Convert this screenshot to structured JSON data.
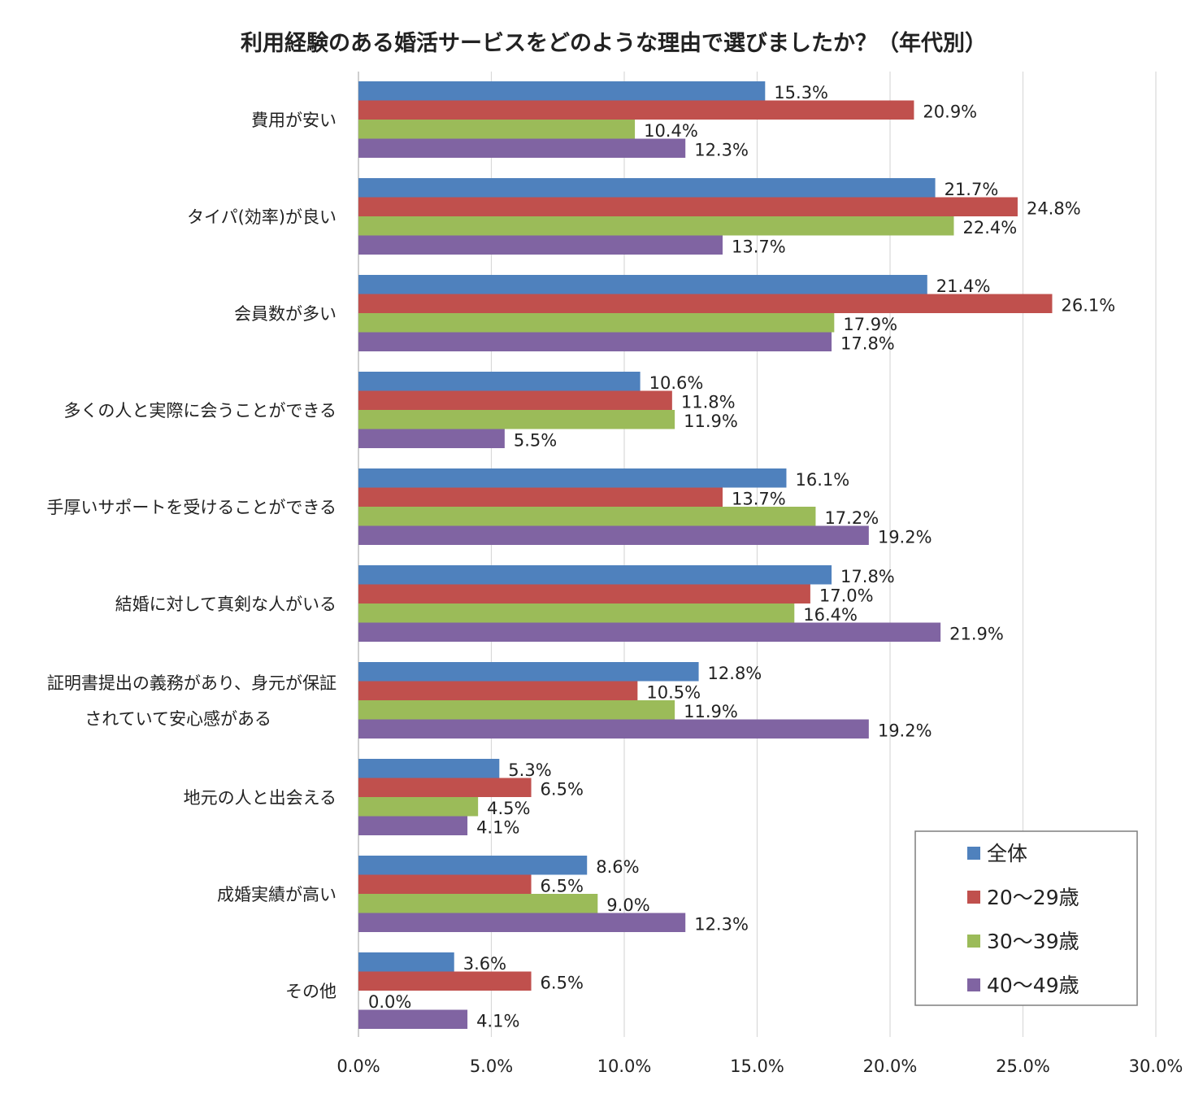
{
  "chart_data": {
    "type": "bar",
    "orientation": "horizontal",
    "title": "利用経験のある婚活サービスをどのような理由で選びましたか？（年代別）",
    "categories": [
      [
        "費用が安い"
      ],
      [
        "タイパ(効率)が良い"
      ],
      [
        "会員数が多い"
      ],
      [
        "多くの人と実際に会うことができる"
      ],
      [
        "手厚いサポートを受けることができる"
      ],
      [
        "結婚に対して真剣な人がいる"
      ],
      [
        "証明書提出の義務があり、身元が保証",
        "されていて安心感がある"
      ],
      [
        "地元の人と出会える"
      ],
      [
        "成婚実績が高い"
      ],
      [
        "その他"
      ]
    ],
    "series": [
      {
        "name": "全体",
        "color": "#4F81BD",
        "values": [
          15.3,
          21.7,
          21.4,
          10.6,
          16.1,
          17.8,
          12.8,
          5.3,
          8.6,
          3.6
        ]
      },
      {
        "name": "20～29歳",
        "color": "#C0504D",
        "values": [
          20.9,
          24.8,
          26.1,
          11.8,
          13.7,
          17.0,
          10.5,
          6.5,
          6.5,
          6.5
        ]
      },
      {
        "name": "30～39歳",
        "color": "#9BBB59",
        "values": [
          10.4,
          22.4,
          17.9,
          11.9,
          17.2,
          16.4,
          11.9,
          4.5,
          9.0,
          0.0
        ]
      },
      {
        "name": "40～49歳",
        "color": "#8064A2",
        "values": [
          12.3,
          13.7,
          17.8,
          5.5,
          19.2,
          21.9,
          19.2,
          4.1,
          12.3,
          4.1
        ]
      }
    ],
    "xlim": [
      0,
      30
    ],
    "xticks": [
      0,
      5,
      10,
      15,
      20,
      25,
      30
    ],
    "value_suffix": "%",
    "grid": "vertical",
    "legend_position": "bottom-right"
  }
}
